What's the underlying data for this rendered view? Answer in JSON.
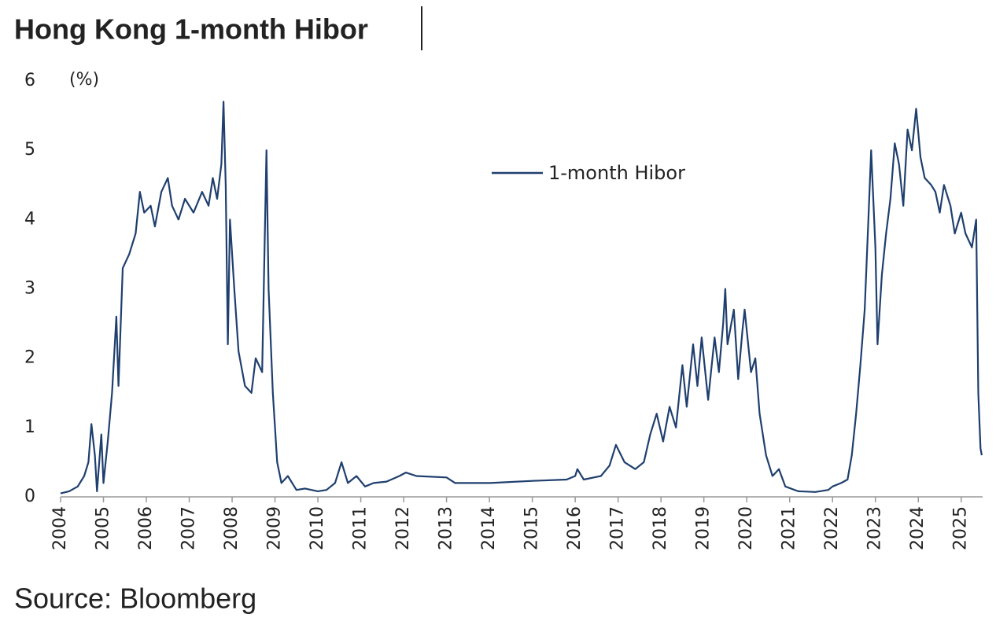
{
  "chart_data": {
    "type": "line",
    "title": "Hong Kong 1-month Hibor",
    "y_label": "(%)",
    "source": "Source: Bloomberg",
    "x": [
      2004.0,
      2004.2,
      2004.4,
      2004.55,
      2004.65,
      2004.72,
      2004.8,
      2004.85,
      2004.95,
      2005.0,
      2005.1,
      2005.2,
      2005.3,
      2005.35,
      2005.45,
      2005.6,
      2005.75,
      2005.85,
      2005.95,
      2006.1,
      2006.2,
      2006.35,
      2006.5,
      2006.6,
      2006.75,
      2006.9,
      2007.1,
      2007.3,
      2007.45,
      2007.55,
      2007.65,
      2007.75,
      2007.8,
      2007.85,
      2007.9,
      2007.95,
      2008.05,
      2008.15,
      2008.3,
      2008.45,
      2008.55,
      2008.7,
      2008.8,
      2008.85,
      2008.95,
      2009.05,
      2009.15,
      2009.3,
      2009.5,
      2009.7,
      2010.0,
      2010.2,
      2010.4,
      2010.55,
      2010.7,
      2010.9,
      2011.1,
      2011.3,
      2011.6,
      2011.9,
      2012.05,
      2012.3,
      2013.0,
      2013.2,
      2014.0,
      2015.0,
      2015.8,
      2016.0,
      2016.05,
      2016.2,
      2016.6,
      2016.8,
      2016.95,
      2017.15,
      2017.4,
      2017.6,
      2017.75,
      2017.9,
      2018.05,
      2018.2,
      2018.35,
      2018.5,
      2018.6,
      2018.75,
      2018.85,
      2018.95,
      2019.1,
      2019.25,
      2019.35,
      2019.45,
      2019.5,
      2019.55,
      2019.7,
      2019.8,
      2019.9,
      2019.95,
      2020.1,
      2020.2,
      2020.3,
      2020.45,
      2020.6,
      2020.75,
      2020.9,
      2021.2,
      2021.6,
      2021.9,
      2022.0,
      2022.2,
      2022.35,
      2022.45,
      2022.55,
      2022.65,
      2022.75,
      2022.85,
      2022.9,
      2023.0,
      2023.05,
      2023.15,
      2023.25,
      2023.35,
      2023.45,
      2023.55,
      2023.65,
      2023.75,
      2023.85,
      2023.95,
      2024.05,
      2024.15,
      2024.3,
      2024.4,
      2024.5,
      2024.6,
      2024.75,
      2024.85,
      2025.0,
      2025.1,
      2025.25,
      2025.35,
      2025.4,
      2025.45,
      2025.48
    ],
    "series": [
      {
        "name": "1-month Hibor",
        "color": "#1f3f6e",
        "values": [
          0.05,
          0.08,
          0.15,
          0.3,
          0.5,
          1.05,
          0.6,
          0.08,
          0.9,
          0.2,
          0.8,
          1.5,
          2.6,
          1.6,
          3.3,
          3.5,
          3.8,
          4.4,
          4.1,
          4.2,
          3.9,
          4.4,
          4.6,
          4.2,
          4.0,
          4.3,
          4.1,
          4.4,
          4.2,
          4.6,
          4.3,
          4.8,
          5.7,
          4.5,
          2.2,
          4.0,
          3.0,
          2.1,
          1.6,
          1.5,
          2.0,
          1.8,
          5.0,
          3.0,
          1.5,
          0.5,
          0.2,
          0.3,
          0.1,
          0.12,
          0.08,
          0.1,
          0.2,
          0.5,
          0.2,
          0.3,
          0.15,
          0.2,
          0.22,
          0.3,
          0.35,
          0.3,
          0.28,
          0.2,
          0.2,
          0.23,
          0.25,
          0.3,
          0.4,
          0.25,
          0.3,
          0.45,
          0.75,
          0.5,
          0.4,
          0.5,
          0.9,
          1.2,
          0.8,
          1.3,
          1.0,
          1.9,
          1.3,
          2.2,
          1.6,
          2.3,
          1.4,
          2.3,
          1.8,
          2.5,
          3.0,
          2.2,
          2.7,
          1.7,
          2.4,
          2.7,
          1.8,
          2.0,
          1.2,
          0.6,
          0.3,
          0.4,
          0.15,
          0.08,
          0.07,
          0.1,
          0.15,
          0.2,
          0.25,
          0.6,
          1.2,
          1.9,
          2.7,
          4.2,
          5.0,
          3.6,
          2.2,
          3.2,
          3.8,
          4.3,
          5.1,
          4.8,
          4.2,
          5.3,
          5.0,
          5.6,
          4.9,
          4.6,
          4.5,
          4.4,
          4.1,
          4.5,
          4.2,
          3.8,
          4.1,
          3.8,
          3.6,
          4.0,
          1.5,
          0.7,
          0.6
        ]
      }
    ],
    "xlim": [
      2004,
      2025.5
    ],
    "xticks": [
      2004,
      2005,
      2006,
      2007,
      2008,
      2009,
      2010,
      2011,
      2012,
      2013,
      2014,
      2015,
      2016,
      2017,
      2018,
      2019,
      2020,
      2021,
      2022,
      2023,
      2024,
      2025
    ],
    "ylim": [
      0,
      6
    ],
    "yticks": [
      0,
      1,
      2,
      3,
      4,
      5,
      6
    ]
  }
}
